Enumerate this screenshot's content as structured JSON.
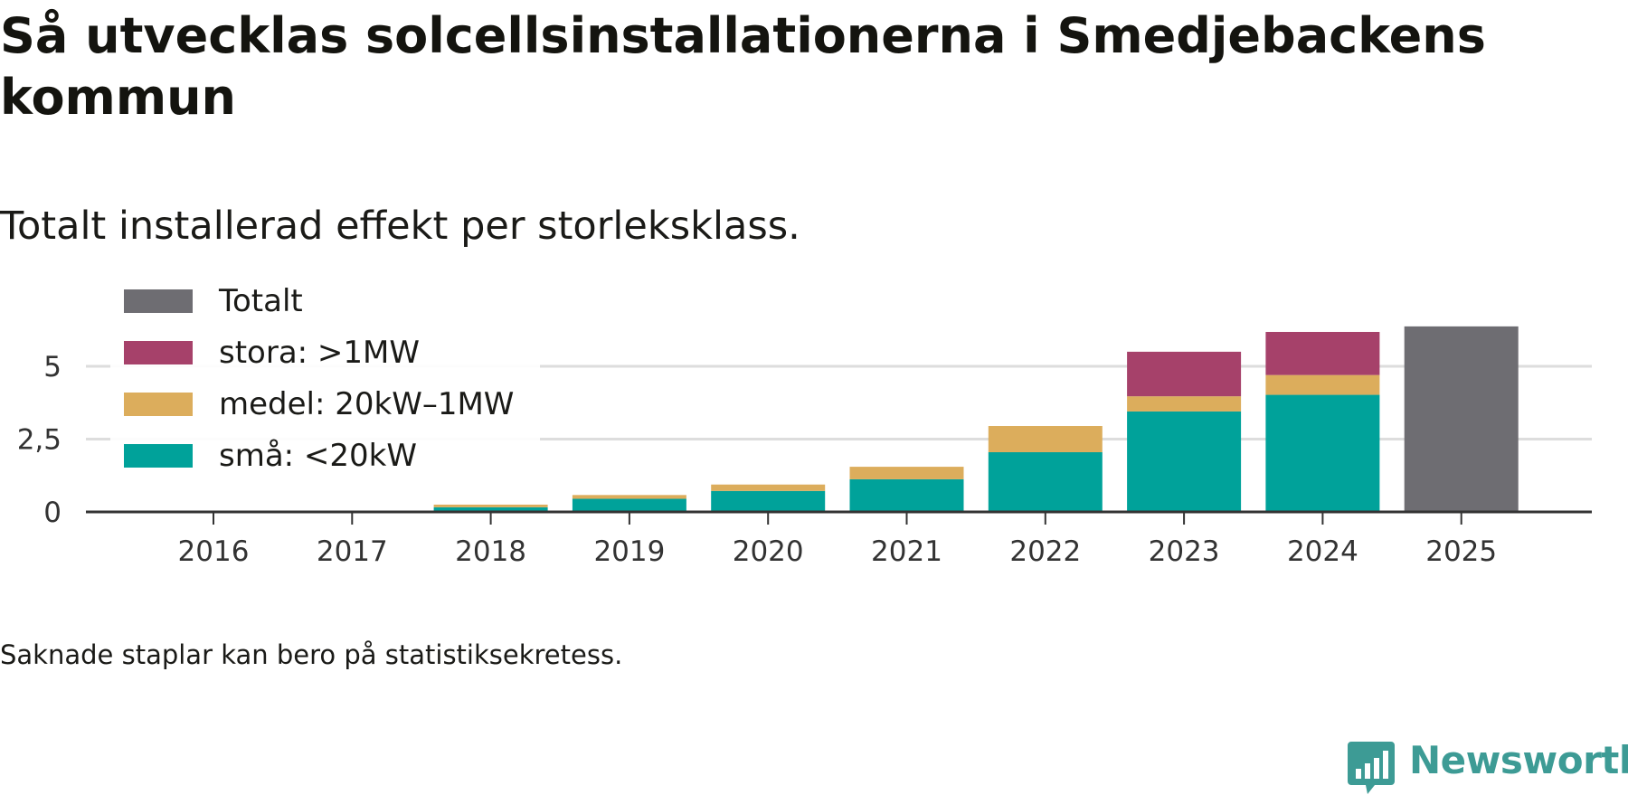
{
  "title": "Så utvecklas solcellsinstallationerna i Smedjebackens kommun",
  "subtitle": "Totalt installerad effekt per storleksklass.",
  "footnote": "Saknade staplar kan bero på statistiksekretess.",
  "brand": {
    "name": "Newsworthy"
  },
  "colors": {
    "totalt": "#6e6d72",
    "stora": "#a6416a",
    "medel": "#dcad5c",
    "sma": "#00a29a",
    "grid": "#dddddd",
    "axis": "#333333",
    "tick_text": "#333333",
    "brand": "#3d9b95"
  },
  "chart_data": {
    "type": "bar",
    "stacked": true,
    "title": "Så utvecklas solcellsinstallationerna i Smedjebackens kommun",
    "subtitle": "Totalt installerad effekt per storleksklass.",
    "xlabel": "",
    "ylabel": "",
    "ylim": [
      0,
      6.5
    ],
    "yticks": [
      {
        "value": 0,
        "label": "0"
      },
      {
        "value": 2.5,
        "label": "2,5"
      },
      {
        "value": 5,
        "label": "5"
      }
    ],
    "grid": true,
    "legend_position": "top-left",
    "categories": [
      "2016",
      "2017",
      "2018",
      "2019",
      "2020",
      "2021",
      "2022",
      "2023",
      "2024",
      "2025"
    ],
    "series": [
      {
        "key": "sma",
        "name": "små: <20kW",
        "values": [
          0,
          0,
          0.16,
          0.45,
          0.72,
          1.12,
          2.05,
          3.45,
          4.02,
          0
        ]
      },
      {
        "key": "medel",
        "name": "medel: 20kW–1MW",
        "values": [
          0,
          0,
          0.09,
          0.13,
          0.22,
          0.43,
          0.9,
          0.52,
          0.68,
          0
        ]
      },
      {
        "key": "stora",
        "name": "stora: >1MW",
        "values": [
          0,
          0,
          0,
          0,
          0,
          0,
          0,
          1.53,
          1.48,
          0
        ]
      },
      {
        "key": "totalt",
        "name": "Totalt",
        "values": [
          0,
          0,
          0,
          0,
          0,
          0,
          0,
          0,
          0,
          6.37
        ]
      }
    ],
    "legend_order": [
      "totalt",
      "stora",
      "medel",
      "sma"
    ]
  }
}
